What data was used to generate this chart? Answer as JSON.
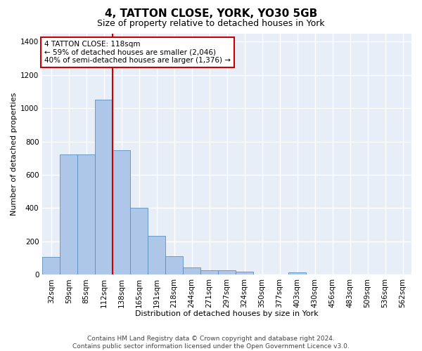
{
  "title": "4, TATTON CLOSE, YORK, YO30 5GB",
  "subtitle": "Size of property relative to detached houses in York",
  "xlabel": "Distribution of detached houses by size in York",
  "ylabel": "Number of detached properties",
  "annotation_line1": "4 TATTON CLOSE: 118sqm",
  "annotation_line2": "← 59% of detached houses are smaller (2,046)",
  "annotation_line3": "40% of semi-detached houses are larger (1,376) →",
  "footer_line1": "Contains HM Land Registry data © Crown copyright and database right 2024.",
  "footer_line2": "Contains public sector information licensed under the Open Government Licence v3.0.",
  "bins": [
    "32sqm",
    "59sqm",
    "85sqm",
    "112sqm",
    "138sqm",
    "165sqm",
    "191sqm",
    "218sqm",
    "244sqm",
    "271sqm",
    "297sqm",
    "324sqm",
    "350sqm",
    "377sqm",
    "403sqm",
    "430sqm",
    "456sqm",
    "483sqm",
    "509sqm",
    "536sqm",
    "562sqm"
  ],
  "values": [
    108,
    722,
    724,
    1050,
    748,
    400,
    235,
    113,
    45,
    28,
    28,
    20,
    0,
    0,
    15,
    0,
    0,
    0,
    0,
    0,
    0
  ],
  "bar_color": "#aec6e8",
  "bar_edge_color": "#5a8fc0",
  "red_line_x": 3.5,
  "red_line_color": "#cc0000",
  "annotation_box_color": "#cc0000",
  "ylim": [
    0,
    1450
  ],
  "yticks": [
    0,
    200,
    400,
    600,
    800,
    1000,
    1200,
    1400
  ],
  "background_color": "#e8eef8",
  "grid_color": "#ffffff",
  "title_fontsize": 11,
  "subtitle_fontsize": 9,
  "axis_label_fontsize": 8,
  "tick_fontsize": 7.5,
  "annotation_fontsize": 7.5,
  "footer_fontsize": 6.5
}
